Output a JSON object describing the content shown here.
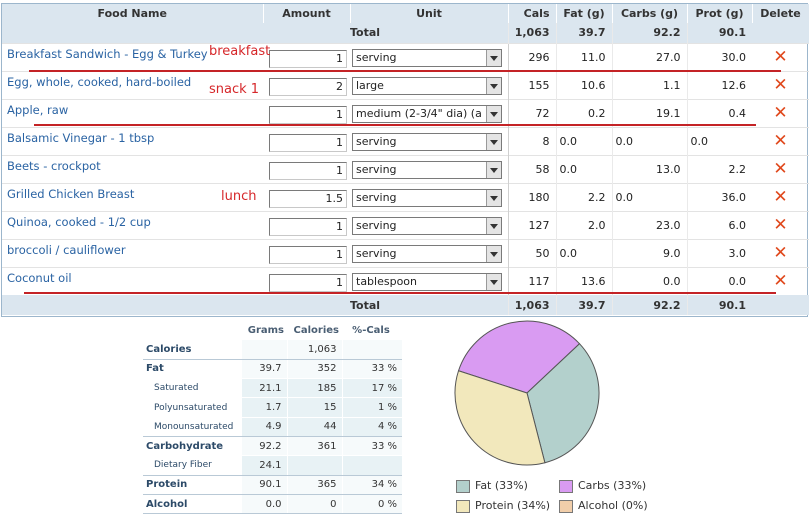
{
  "food_table": {
    "headers": [
      "Food Name",
      "Amount",
      "Unit",
      "Cals",
      "Fat (g)",
      "Carbs (g)",
      "Prot (g)",
      "Delete"
    ],
    "totals": {
      "label": "Total",
      "cals": "1,063",
      "fat": "39.7",
      "carbs": "92.2",
      "prot": "90.1"
    },
    "rows": [
      {
        "name": "Breakfast Sandwich - Egg & Turkey",
        "amount": "1",
        "unit": "serving",
        "cals": "296",
        "fat": "11.0",
        "carbs": "27.0",
        "prot": "30.0"
      },
      {
        "name": "Egg, whole, cooked, hard-boiled",
        "amount": "2",
        "unit": "large",
        "cals": "155",
        "fat": "10.6",
        "carbs": "1.1",
        "prot": "12.6"
      },
      {
        "name": "Apple, raw",
        "amount": "1",
        "unit": "medium (2-3/4\" dia) (a",
        "cals": "72",
        "fat": "0.2",
        "carbs": "19.1",
        "prot": "0.4"
      },
      {
        "name": "Balsamic Vinegar - 1 tbsp",
        "amount": "1",
        "unit": "serving",
        "cals": "8",
        "fat": "0.0",
        "carbs": "0.0",
        "prot": "0.0"
      },
      {
        "name": "Beets - crockpot",
        "amount": "1",
        "unit": "serving",
        "cals": "58",
        "fat": "0.0",
        "carbs": "13.0",
        "prot": "2.2"
      },
      {
        "name": "Grilled Chicken Breast",
        "amount": "1.5",
        "unit": "serving",
        "cals": "180",
        "fat": "2.2",
        "carbs": "0.0",
        "prot": "36.0"
      },
      {
        "name": "Quinoa, cooked - 1/2 cup",
        "amount": "1",
        "unit": "serving",
        "cals": "127",
        "fat": "2.0",
        "carbs": "23.0",
        "prot": "6.0"
      },
      {
        "name": "broccoli / cauliflower",
        "amount": "1",
        "unit": "serving",
        "cals": "50",
        "fat": "0.0",
        "carbs": "9.0",
        "prot": "3.0"
      },
      {
        "name": "Coconut oil",
        "amount": "1",
        "unit": "tablespoon",
        "cals": "117",
        "fat": "13.6",
        "carbs": "0.0",
        "prot": "0.0"
      }
    ],
    "delete_glyph": "✕"
  },
  "annotations": {
    "breakfast": "breakfast",
    "snack": "snack 1",
    "lunch": "lunch",
    "color": "#d6272a"
  },
  "summary": {
    "headers": [
      "Grams",
      "Calories",
      "%-Cals"
    ],
    "rows": [
      {
        "label": "Calories",
        "grams": "",
        "calories": "1,063",
        "pct": ""
      },
      {
        "label": "Fat",
        "grams": "39.7",
        "calories": "352",
        "pct": "33 %"
      },
      {
        "label": "Saturated",
        "grams": "21.1",
        "calories": "185",
        "pct": "17 %"
      },
      {
        "label": "Polyunsaturated",
        "grams": "1.7",
        "calories": "15",
        "pct": "1 %"
      },
      {
        "label": "Monounsaturated",
        "grams": "4.9",
        "calories": "44",
        "pct": "4 %"
      },
      {
        "label": "Carbohydrate",
        "grams": "92.2",
        "calories": "361",
        "pct": "33 %"
      },
      {
        "label": "Dietary Fiber",
        "grams": "24.1",
        "calories": "",
        "pct": ""
      },
      {
        "label": "Protein",
        "grams": "90.1",
        "calories": "365",
        "pct": "34 %"
      },
      {
        "label": "Alcohol",
        "grams": "0.0",
        "calories": "0",
        "pct": "0 %"
      }
    ]
  },
  "chart_data": {
    "type": "pie",
    "series": [
      {
        "name": "Fat",
        "value": 33,
        "color": "#b3d0cc"
      },
      {
        "name": "Carbs",
        "value": 33,
        "color": "#d99bf2"
      },
      {
        "name": "Protein",
        "value": 34,
        "color": "#f2e8bc"
      },
      {
        "name": "Alcohol",
        "value": 0,
        "color": "#f1ceaa"
      }
    ],
    "legend": [
      "Fat (33%)",
      "Carbs (33%)",
      "Protein (34%)",
      "Alcohol (0%)"
    ]
  }
}
